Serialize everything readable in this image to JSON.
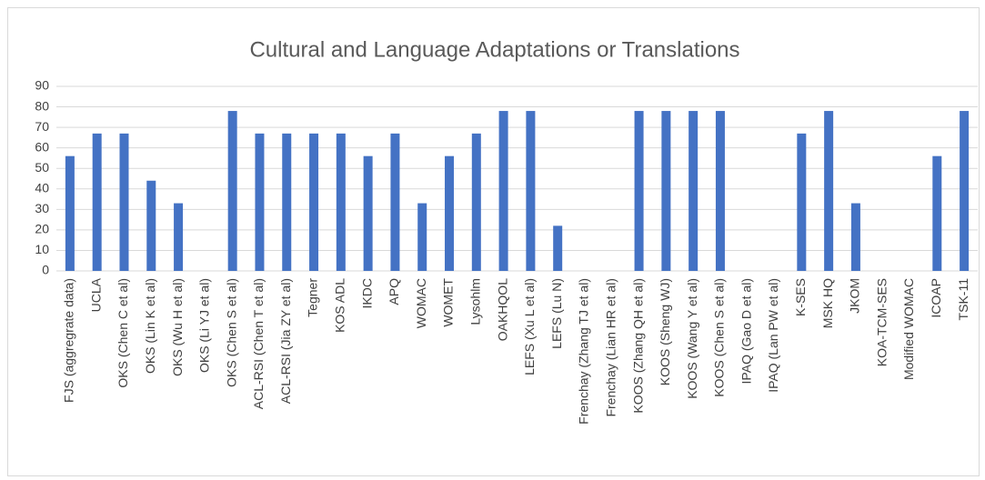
{
  "chart_data": {
    "type": "bar",
    "title": "Cultural and Language Adaptations or Translations",
    "categories": [
      "FJS (aggregrate data)",
      "UCLA",
      "OKS (Chen C et al)",
      "OKS (Lin K et al)",
      "OKS (Wu H et al)",
      "OKS (Li YJ et al)",
      "OKS (Chen S et al)",
      "ACL-RSI (Chen T et al)",
      "ACL-RSI (Jia ZY et al)",
      "Tegner",
      "KOS ADL",
      "IKDC",
      "APQ",
      "WOMAC",
      "WOMET",
      "Lysohlm",
      "OAKHQOL",
      "LEFS (Xu L et al)",
      "LEFS (Lu N)",
      "Frenchay (Zhang TJ et al)",
      "Frenchay (Lian HR et al)",
      "KOOS (Zhang QH et al)",
      "KOOS (Sheng WJ)",
      "KOOS (Wang Y et al)",
      "KOOS (Chen S et al)",
      "IPAQ (Gao D et al)",
      "IPAQ  (Lan PW et al)",
      "K-SES",
      "MSK HQ",
      "JKOM",
      "KOA-TCM-SES",
      "Modified WOMAC",
      "ICOAP",
      "TSK-11"
    ],
    "values": [
      56,
      67,
      67,
      44,
      33,
      0,
      78,
      67,
      67,
      67,
      67,
      56,
      67,
      33,
      56,
      67,
      78,
      78,
      22,
      0,
      0,
      78,
      78,
      78,
      78,
      0,
      0,
      67,
      78,
      33,
      0,
      0,
      56,
      78
    ],
    "color": "#4472c4",
    "ylim": [
      0,
      90
    ],
    "yticks": [
      0,
      10,
      20,
      30,
      40,
      50,
      60,
      70,
      80,
      90
    ],
    "grid": true
  }
}
